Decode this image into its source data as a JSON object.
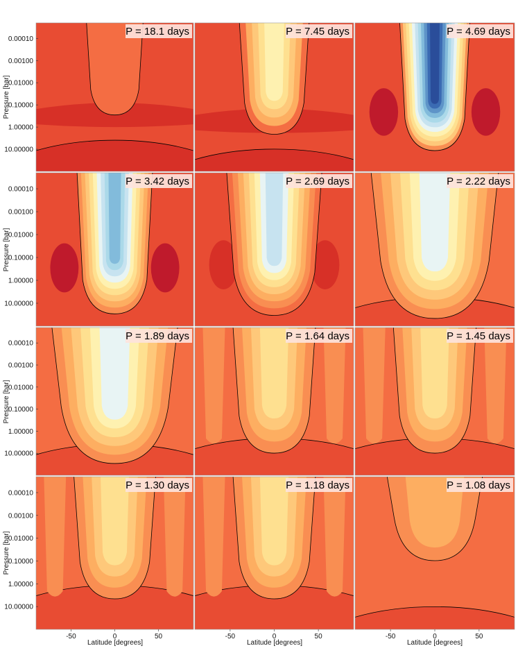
{
  "chart_data": {
    "type": "heatmap",
    "rows": 4,
    "cols": 3,
    "xlabel": "Latitude [degrees]",
    "ylabel": "Pressure [bar]",
    "xlim": [
      -90,
      90
    ],
    "x_ticks": [
      "-50",
      "0",
      "50"
    ],
    "x_tick_values": [
      -50,
      0,
      50
    ],
    "y_scale": "log",
    "y_ticks": [
      "0.00010",
      "0.00100",
      "0.01000",
      "0.10000",
      "1.00000",
      "10.00000"
    ],
    "y_tick_values": [
      0.0001,
      0.001,
      0.01,
      0.1,
      1,
      10
    ],
    "ylim": [
      2e-05,
      100
    ],
    "colormap": "RdYlBu (red = high, blue = low)",
    "colors": [
      "#bf1a2c",
      "#d73027",
      "#e84c33",
      "#f46d43",
      "#f98e52",
      "#fdae61",
      "#fec87a",
      "#fee090",
      "#fef1b0",
      "#e8f4f4",
      "#c7e3f0",
      "#abd9e9",
      "#82bbdb",
      "#5e94c8",
      "#3b6bb3",
      "#2a4d9a"
    ],
    "panels": [
      {
        "title": "P = 18.1 days"
      },
      {
        "title": "P = 7.45 days"
      },
      {
        "title": "P = 4.69 days"
      },
      {
        "title": "P = 3.42 days"
      },
      {
        "title": "P = 2.69 days"
      },
      {
        "title": "P = 2.22 days"
      },
      {
        "title": "P = 1.89 days"
      },
      {
        "title": "P = 1.64 days"
      },
      {
        "title": "P = 1.45 days"
      },
      {
        "title": "P = 1.30 days"
      },
      {
        "title": "P = 1.18 days"
      },
      {
        "title": "P = 1.08 days"
      }
    ]
  }
}
